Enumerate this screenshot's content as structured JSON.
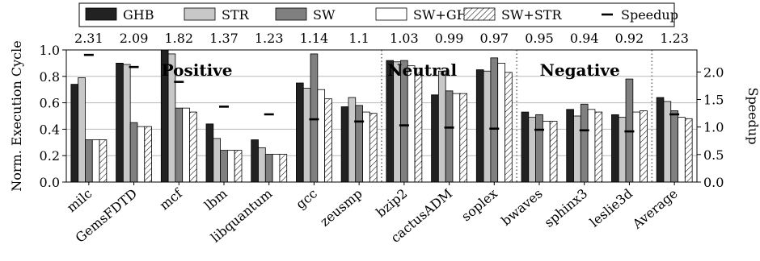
{
  "chart_data": {
    "type": "bar",
    "title": "",
    "xlabel": "",
    "ylabel": "Norm. Execution Cycle",
    "y2label": "Speedup",
    "ylim": [
      0,
      1.0
    ],
    "yticks": [
      "0.0",
      "0.2",
      "0.4",
      "0.6",
      "0.8",
      "1.0"
    ],
    "y2lim": [
      0,
      2.4
    ],
    "y2ticks": [
      "0.0",
      "0.5",
      "1.0",
      "1.5",
      "2.0"
    ],
    "grid": "horizontal",
    "legend_position": "top",
    "categories": [
      "milc",
      "GemsFDTD",
      "mcf",
      "lbm",
      "libquantum",
      "gcc",
      "zeusmp",
      "bzip2",
      "cactusADM",
      "soplex",
      "bwaves",
      "sphinx3",
      "leslie3d",
      "Average"
    ],
    "speedup_labels": [
      "2.31",
      "2.09",
      "1.82",
      "1.37",
      "1.23",
      "1.14",
      "1.1",
      "1.03",
      "0.99",
      "0.97",
      "0.95",
      "0.94",
      "0.92",
      "1.23"
    ],
    "series": [
      {
        "name": "GHB",
        "pattern": "solid-dark",
        "values": [
          0.74,
          0.9,
          1.0,
          0.44,
          0.32,
          0.75,
          0.57,
          0.92,
          0.66,
          0.85,
          0.53,
          0.55,
          0.51,
          0.64
        ]
      },
      {
        "name": "STR",
        "pattern": "solid-light",
        "values": [
          0.79,
          0.89,
          0.97,
          0.33,
          0.26,
          0.71,
          0.64,
          0.91,
          0.84,
          0.84,
          0.49,
          0.5,
          0.49,
          0.61
        ]
      },
      {
        "name": "SW",
        "pattern": "solid-mid",
        "values": [
          0.32,
          0.45,
          0.56,
          0.24,
          0.21,
          0.97,
          0.58,
          0.92,
          0.69,
          0.94,
          0.51,
          0.59,
          0.78,
          0.54
        ]
      },
      {
        "name": "SW+GHB",
        "pattern": "white",
        "values": [
          0.32,
          0.42,
          0.56,
          0.24,
          0.21,
          0.7,
          0.53,
          0.88,
          0.67,
          0.9,
          0.46,
          0.55,
          0.53,
          0.49
        ]
      },
      {
        "name": "SW+STR",
        "pattern": "hatched",
        "values": [
          0.32,
          0.42,
          0.53,
          0.24,
          0.21,
          0.63,
          0.52,
          0.86,
          0.67,
          0.83,
          0.46,
          0.53,
          0.54,
          0.48
        ]
      },
      {
        "name": "Speedup",
        "pattern": "marker",
        "axis": "right",
        "values": [
          2.31,
          2.09,
          1.82,
          1.37,
          1.23,
          1.14,
          1.1,
          1.03,
          0.99,
          0.97,
          0.95,
          0.94,
          0.92,
          1.23
        ]
      }
    ],
    "separators_after": [
      "zeusmp",
      "soplex",
      "leslie3d"
    ],
    "region_annotations": [
      "Positive",
      "Neutral",
      "Negative"
    ],
    "colors": {
      "GHB": "#222222",
      "STR": "#c8c8c8",
      "SW": "#808080",
      "SW+GHB": "#ffffff",
      "SW+STR": "#ffffff",
      "grid": "#b8b8b8",
      "separator": "#888888"
    }
  }
}
